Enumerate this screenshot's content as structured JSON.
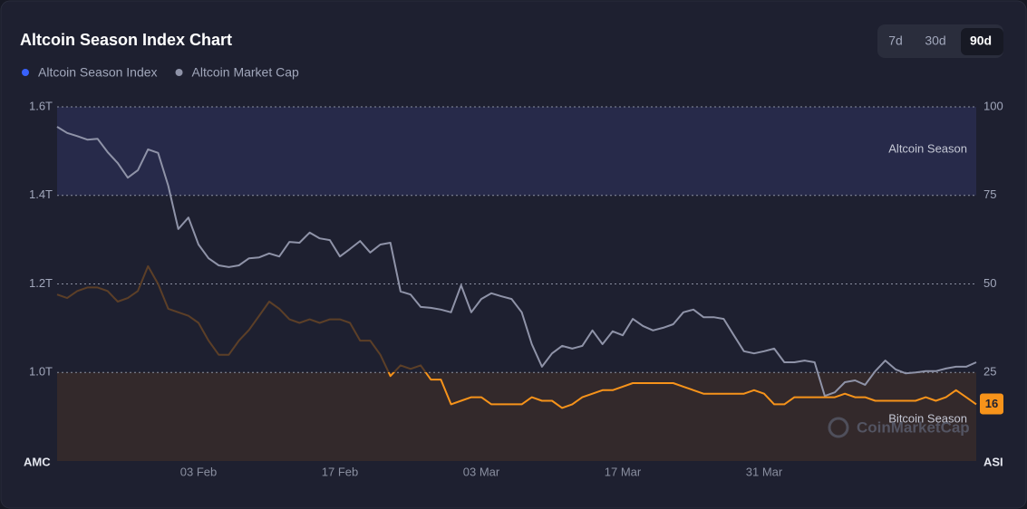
{
  "chart_data": {
    "type": "line",
    "title": "Altcoin Season Index Chart",
    "range_buttons": [
      "7d",
      "30d",
      "90d"
    ],
    "active_range": "90d",
    "legend_position": "top-left",
    "categories": [
      null,
      null,
      null,
      null,
      null,
      null,
      null,
      null,
      null,
      null,
      null,
      null,
      null,
      null,
      "03 Feb",
      null,
      null,
      null,
      null,
      null,
      null,
      null,
      null,
      null,
      null,
      null,
      null,
      null,
      "17 Feb",
      null,
      null,
      null,
      null,
      null,
      null,
      null,
      null,
      null,
      null,
      null,
      null,
      null,
      "03 Mar",
      null,
      null,
      null,
      null,
      null,
      null,
      null,
      null,
      null,
      null,
      null,
      null,
      null,
      "17 Mar",
      null,
      null,
      null,
      null,
      null,
      null,
      null,
      null,
      null,
      null,
      null,
      null,
      null,
      "31 Mar",
      null,
      null,
      null,
      null,
      null,
      null,
      null,
      null,
      null,
      null,
      null,
      null,
      null,
      null,
      null,
      null,
      null,
      null,
      null,
      null,
      null
    ],
    "series": [
      {
        "name": "Altcoin Season Index",
        "color": "#3861fb",
        "neutral_color": "#5c3f27",
        "axis": "y2",
        "values": [
          47,
          46,
          48,
          49,
          49,
          48,
          45,
          46,
          48,
          55,
          50,
          43,
          42,
          41,
          39,
          34,
          30,
          30,
          34,
          37,
          41,
          45,
          43,
          40,
          39,
          40,
          39,
          40,
          40,
          39,
          34,
          34,
          30,
          24,
          27,
          26,
          27,
          23,
          23,
          16,
          17,
          18,
          18,
          16,
          16,
          16,
          16,
          18,
          17,
          17,
          15,
          16,
          18,
          19,
          20,
          20,
          21,
          22,
          22,
          22,
          22,
          22,
          21,
          20,
          19,
          19,
          19,
          19,
          19,
          20,
          19,
          16,
          16,
          18,
          18,
          18,
          18,
          18,
          19,
          18,
          18,
          17,
          17,
          17,
          17,
          17,
          18,
          17,
          18,
          20,
          18,
          16
        ]
      },
      {
        "name": "Altcoin Market Cap",
        "color": "#8f93a8",
        "values": [
          1.555,
          1.541,
          1.534,
          1.526,
          1.528,
          1.498,
          1.473,
          1.44,
          1.457,
          1.504,
          1.496,
          1.422,
          1.324,
          1.35,
          1.289,
          1.258,
          1.242,
          1.238,
          1.242,
          1.258,
          1.26,
          1.269,
          1.262,
          1.295,
          1.293,
          1.316,
          1.303,
          1.299,
          1.262,
          1.279,
          1.297,
          1.271,
          1.289,
          1.293,
          1.183,
          1.176,
          1.148,
          1.146,
          1.142,
          1.136,
          1.197,
          1.136,
          1.166,
          1.179,
          1.172,
          1.166,
          1.136,
          1.064,
          1.013,
          1.043,
          1.06,
          1.054,
          1.06,
          1.095,
          1.064,
          1.093,
          1.084,
          1.121,
          1.105,
          1.095,
          1.101,
          1.109,
          1.136,
          1.142,
          1.125,
          1.125,
          1.121,
          1.084,
          1.048,
          1.043,
          1.048,
          1.054,
          1.023,
          1.023,
          1.027,
          1.023,
          0.947,
          0.955,
          0.978,
          0.982,
          0.972,
          1.003,
          1.027,
          1.007,
          0.998,
          1.0,
          1.003,
          1.003,
          1.009,
          1.013,
          1.013,
          1.023
        ]
      }
    ],
    "ylim": [
      0.8,
      1.6
    ],
    "yticks": [
      {
        "value": 1.0,
        "label": "1.0T"
      },
      {
        "value": 1.2,
        "label": "1.2T"
      },
      {
        "value": 1.4,
        "label": "1.4T"
      },
      {
        "value": 1.6,
        "label": "1.6T"
      }
    ],
    "y_label": "AMC",
    "y2lim": [
      0,
      100
    ],
    "y2ticks": [
      25,
      50,
      75,
      100
    ],
    "y2_label": "ASI",
    "grid": true,
    "bands": [
      {
        "text": "Altcoin Season",
        "from": 75,
        "to": 100,
        "color": "#272a4a",
        "line_color": "#3861fb"
      },
      {
        "text": "Bitcoin Season",
        "from": 0,
        "to": 25,
        "color": "#33292b",
        "line_color": "#f7931a"
      }
    ],
    "watermark": "CoinMarketCap"
  }
}
